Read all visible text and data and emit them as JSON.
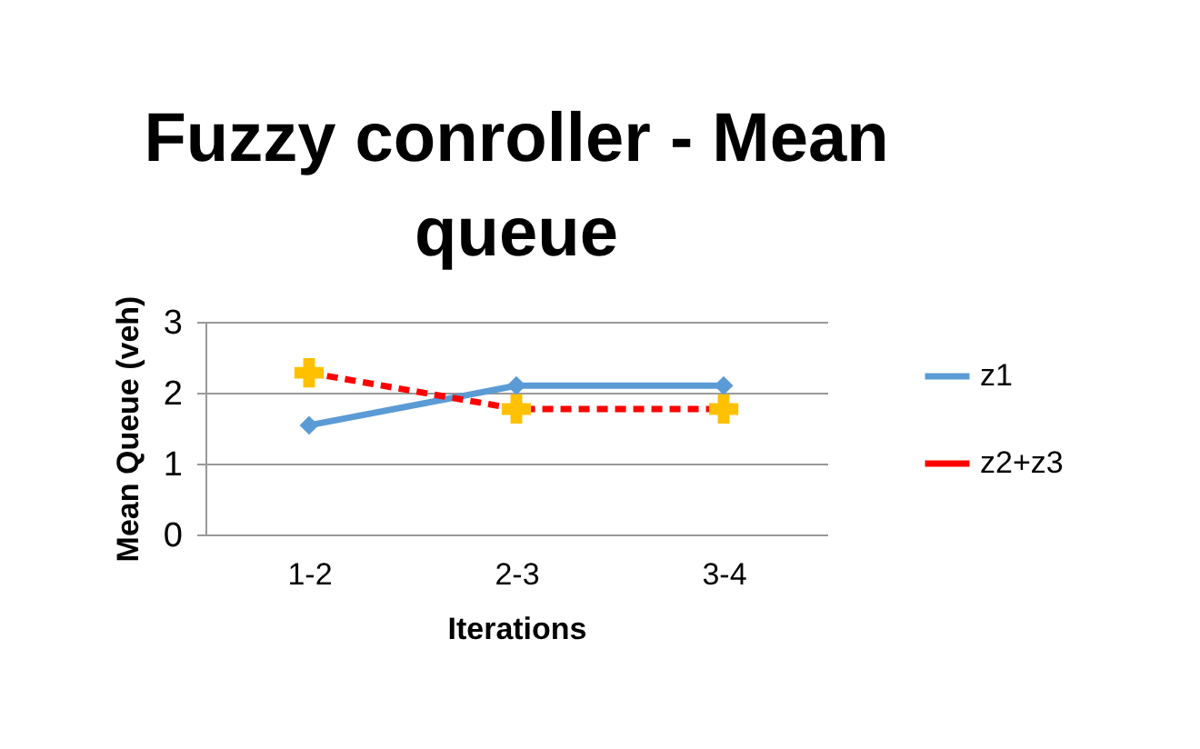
{
  "chart_data": {
    "type": "line",
    "title": "Fuzzy conroller - Mean queue",
    "xlabel": "Iterations",
    "ylabel": "Mean Queue (veh)",
    "categories": [
      "1-2",
      "2-3",
      "3-4"
    ],
    "series": [
      {
        "name": "z1",
        "color": "#5b9bd5",
        "values": [
          1.54,
          2.1,
          2.1
        ],
        "marker": "diamond",
        "line_style": "solid"
      },
      {
        "name": "z2+z3",
        "color": "#ff0000",
        "colors": [
          "#ffc000",
          "#ffc000",
          "#ffc000"
        ],
        "values": [
          2.28,
          1.77,
          1.77
        ],
        "marker": "cross",
        "line_style": "dashed"
      }
    ],
    "ylim": [
      0,
      3
    ],
    "yticks": [
      0,
      1,
      2,
      3
    ],
    "grid": "y",
    "legend": "right"
  }
}
